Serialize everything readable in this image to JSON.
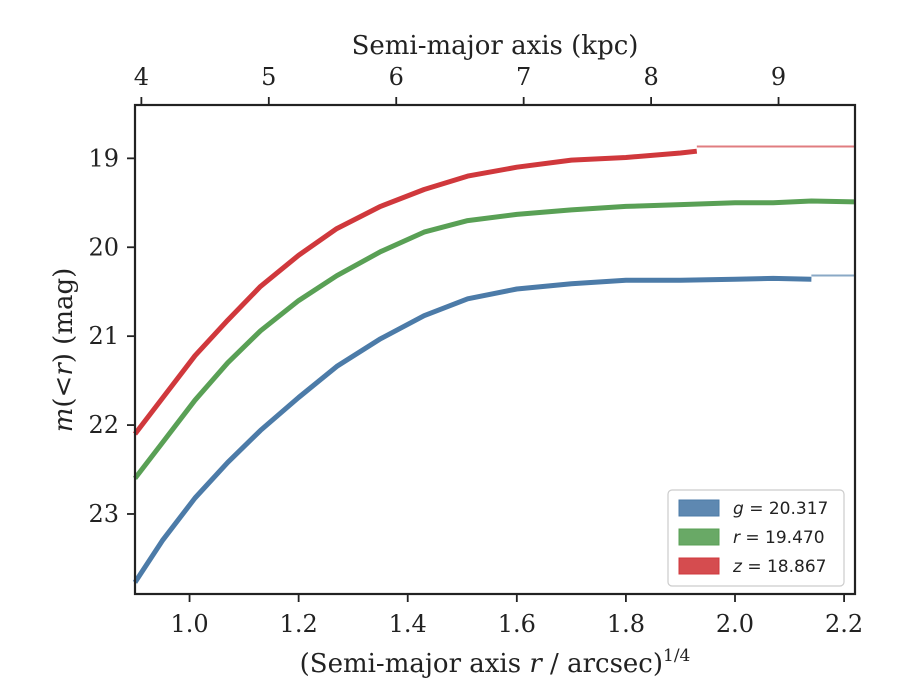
{
  "chart_data": {
    "type": "line",
    "xlabel_prefix": "(Semi-major axis ",
    "xlabel_var": "r",
    "xlabel_mid": " / arcsec)",
    "xlabel_sup": "1/4",
    "x2label": "Semi-major axis (kpc)",
    "ylabel_m": "m",
    "ylabel_paren": "(<",
    "ylabel_r": "r",
    "ylabel_rest": ") (mag)",
    "xlim": [
      0.9,
      2.22
    ],
    "ylim": [
      23.9,
      18.4
    ],
    "y_inverted": true,
    "xticks": [
      1.0,
      1.2,
      1.4,
      1.6,
      1.8,
      2.0,
      2.2
    ],
    "xtick_labels": [
      "1.0",
      "1.2",
      "1.4",
      "1.6",
      "1.8",
      "2.0",
      "2.2"
    ],
    "yticks": [
      19,
      20,
      21,
      22,
      23
    ],
    "ytick_labels": [
      "19",
      "20",
      "21",
      "22",
      "23"
    ],
    "x2ticks_kpc": [
      4,
      5,
      6,
      7,
      8,
      9
    ],
    "x2tick_labels": [
      "4",
      "5",
      "6",
      "7",
      "8",
      "9"
    ],
    "grid": false,
    "legend_position": "bottom-right",
    "series": [
      {
        "band": "g",
        "value_text": "20.317",
        "color": "#4c7ba8",
        "asymptote": 20.317,
        "x": [
          0.9,
          0.95,
          1.01,
          1.07,
          1.13,
          1.2,
          1.27,
          1.35,
          1.43,
          1.51,
          1.6,
          1.7,
          1.8,
          1.9,
          2.0,
          2.07,
          2.14
        ],
        "y": [
          23.77,
          23.3,
          22.82,
          22.42,
          22.06,
          21.69,
          21.34,
          21.03,
          20.77,
          20.58,
          20.47,
          20.41,
          20.37,
          20.37,
          20.36,
          20.35,
          20.36
        ]
      },
      {
        "band": "r",
        "value_text": "19.470",
        "color": "#59a055",
        "asymptote": 19.47,
        "x": [
          0.9,
          0.95,
          1.01,
          1.07,
          1.13,
          1.2,
          1.27,
          1.35,
          1.43,
          1.51,
          1.6,
          1.7,
          1.8,
          1.9,
          2.0,
          2.07,
          2.14,
          2.22
        ],
        "y": [
          22.6,
          22.2,
          21.72,
          21.3,
          20.94,
          20.6,
          20.32,
          20.05,
          19.83,
          19.7,
          19.63,
          19.58,
          19.54,
          19.52,
          19.5,
          19.5,
          19.48,
          19.49
        ]
      },
      {
        "band": "z",
        "value_text": "18.867",
        "color": "#d0383c",
        "asymptote": 18.867,
        "x": [
          0.9,
          0.95,
          1.01,
          1.07,
          1.13,
          1.2,
          1.27,
          1.35,
          1.43,
          1.51,
          1.6,
          1.7,
          1.8,
          1.9,
          1.93
        ],
        "y": [
          22.1,
          21.7,
          21.22,
          20.82,
          20.44,
          20.09,
          19.79,
          19.54,
          19.35,
          19.2,
          19.1,
          19.02,
          18.99,
          18.94,
          18.92
        ]
      }
    ]
  }
}
